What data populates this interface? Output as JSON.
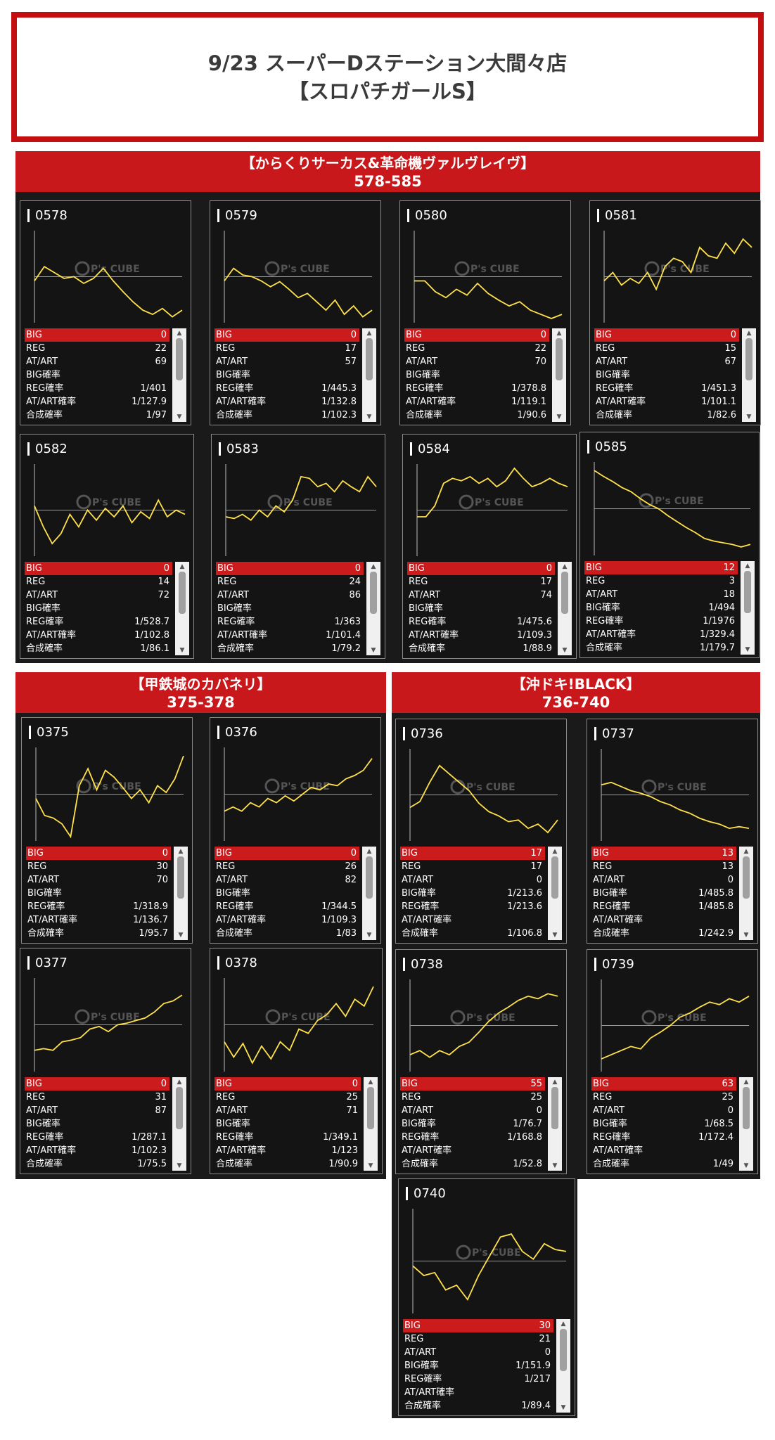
{
  "header": {
    "line1": "9/23 スーパーDステーション大間々店",
    "line2": "【スロパチガールS】"
  },
  "watermark": {
    "brand": "P's CUBE"
  },
  "stat_labels": {
    "big": "BIG",
    "reg": "REG",
    "at": "AT/ART",
    "big_p": "BIG確率",
    "reg_p": "REG確率",
    "at_p": "AT/ART確率",
    "total_p": "合成確率"
  },
  "colors": {
    "accent": "#c8181b",
    "line": "#ffe14a",
    "panel": "#141414"
  },
  "sections": [
    {
      "title": "【からくりサーカス&革命機ヴァルヴレイヴ】",
      "range": "578-585"
    },
    {
      "title": "【甲鉄城のカバネリ】",
      "range": "375-378"
    },
    {
      "title": "【沖ドキ!BLACK】",
      "range": "736-740"
    }
  ],
  "machines": [
    {
      "id": "0578",
      "big": "0",
      "reg": "22",
      "at": "69",
      "big_p": "",
      "reg_p": "1/401",
      "at_p": "1/127.9",
      "total_p": "1/97",
      "trend": [
        0.45,
        0.62,
        0.55,
        0.48,
        0.5,
        0.42,
        0.48,
        0.6,
        0.45,
        0.32,
        0.2,
        0.1,
        0.05,
        0.12,
        0.02,
        0.1
      ]
    },
    {
      "id": "0579",
      "big": "0",
      "reg": "17",
      "at": "57",
      "big_p": "",
      "reg_p": "1/445.3",
      "at_p": "1/132.8",
      "total_p": "1/102.3",
      "trend": [
        0.45,
        0.6,
        0.52,
        0.5,
        0.45,
        0.38,
        0.44,
        0.35,
        0.25,
        0.3,
        0.2,
        0.1,
        0.22,
        0.05,
        0.15,
        0.02,
        0.1
      ]
    },
    {
      "id": "0580",
      "big": "0",
      "reg": "22",
      "at": "70",
      "big_p": "",
      "reg_p": "1/378.8",
      "at_p": "1/119.1",
      "total_p": "1/90.6",
      "trend": [
        0.45,
        0.45,
        0.32,
        0.25,
        0.35,
        0.28,
        0.42,
        0.3,
        0.22,
        0.15,
        0.2,
        0.1,
        0.05,
        0.0,
        0.05
      ]
    },
    {
      "id": "0581",
      "big": "0",
      "reg": "15",
      "at": "67",
      "big_p": "",
      "reg_p": "1/451.3",
      "at_p": "1/101.1",
      "total_p": "1/82.6",
      "trend": [
        0.45,
        0.55,
        0.4,
        0.48,
        0.42,
        0.55,
        0.35,
        0.62,
        0.72,
        0.68,
        0.55,
        0.85,
        0.75,
        0.72,
        0.9,
        0.78,
        0.95,
        0.85
      ]
    },
    {
      "id": "0582",
      "big": "0",
      "reg": "14",
      "at": "72",
      "big_p": "",
      "reg_p": "1/528.7",
      "at_p": "1/102.8",
      "total_p": "1/86.1",
      "trend": [
        0.55,
        0.3,
        0.1,
        0.22,
        0.45,
        0.3,
        0.5,
        0.38,
        0.52,
        0.42,
        0.55,
        0.35,
        0.48,
        0.4,
        0.62,
        0.42,
        0.5,
        0.45
      ]
    },
    {
      "id": "0583",
      "big": "0",
      "reg": "24",
      "at": "86",
      "big_p": "",
      "reg_p": "1/363",
      "at_p": "1/101.4",
      "total_p": "1/79.2",
      "trend": [
        0.42,
        0.4,
        0.45,
        0.38,
        0.5,
        0.42,
        0.55,
        0.48,
        0.62,
        0.9,
        0.88,
        0.78,
        0.82,
        0.72,
        0.85,
        0.78,
        0.72,
        0.9,
        0.78
      ]
    },
    {
      "id": "0584",
      "big": "0",
      "reg": "17",
      "at": "74",
      "big_p": "",
      "reg_p": "1/475.6",
      "at_p": "1/109.3",
      "total_p": "1/88.9",
      "trend": [
        0.42,
        0.42,
        0.55,
        0.82,
        0.88,
        0.85,
        0.9,
        0.82,
        0.88,
        0.78,
        0.85,
        1.0,
        0.88,
        0.78,
        0.82,
        0.88,
        0.82,
        0.78
      ]
    },
    {
      "id": "0585",
      "big": "12",
      "reg": "3",
      "at": "18",
      "big_p": "1/494",
      "reg_p": "1/1976",
      "at_p": "1/329.4",
      "total_p": "1/179.7",
      "trend": [
        0.95,
        0.88,
        0.82,
        0.75,
        0.7,
        0.62,
        0.55,
        0.5,
        0.42,
        0.35,
        0.28,
        0.22,
        0.15,
        0.12,
        0.1,
        0.08,
        0.05,
        0.08
      ]
    },
    {
      "id": "0375",
      "big": "0",
      "reg": "30",
      "at": "70",
      "big_p": "",
      "reg_p": "1/318.9",
      "at_p": "1/136.7",
      "total_p": "1/95.7",
      "trend": [
        0.45,
        0.25,
        0.22,
        0.15,
        0.0,
        0.6,
        0.8,
        0.55,
        0.78,
        0.7,
        0.58,
        0.45,
        0.55,
        0.4,
        0.6,
        0.52,
        0.68,
        0.95
      ]
    },
    {
      "id": "0376",
      "big": "0",
      "reg": "26",
      "at": "82",
      "big_p": "",
      "reg_p": "1/344.5",
      "at_p": "1/109.3",
      "total_p": "1/83",
      "trend": [
        0.3,
        0.35,
        0.3,
        0.4,
        0.35,
        0.45,
        0.4,
        0.48,
        0.42,
        0.5,
        0.58,
        0.55,
        0.62,
        0.6,
        0.68,
        0.72,
        0.78,
        0.92
      ]
    },
    {
      "id": "0736",
      "big": "17",
      "reg": "17",
      "at": "0",
      "big_p": "1/213.6",
      "reg_p": "1/213.6",
      "at_p": "",
      "total_p": "1/106.8",
      "trend": [
        0.35,
        0.42,
        0.65,
        0.85,
        0.75,
        0.65,
        0.55,
        0.4,
        0.3,
        0.25,
        0.18,
        0.2,
        0.1,
        0.15,
        0.05,
        0.2
      ]
    },
    {
      "id": "0737",
      "big": "13",
      "reg": "13",
      "at": "0",
      "big_p": "1/485.8",
      "reg_p": "1/485.8",
      "at_p": "",
      "total_p": "1/242.9",
      "trend": [
        0.62,
        0.65,
        0.6,
        0.55,
        0.52,
        0.48,
        0.42,
        0.38,
        0.32,
        0.28,
        0.22,
        0.18,
        0.15,
        0.1,
        0.12,
        0.1
      ]
    },
    {
      "id": "0377",
      "big": "0",
      "reg": "31",
      "at": "87",
      "big_p": "",
      "reg_p": "1/287.1",
      "at_p": "1/102.3",
      "total_p": "1/75.5",
      "trend": [
        0.2,
        0.22,
        0.2,
        0.3,
        0.32,
        0.35,
        0.45,
        0.48,
        0.42,
        0.5,
        0.52,
        0.55,
        0.58,
        0.65,
        0.75,
        0.78,
        0.85
      ]
    },
    {
      "id": "0378",
      "big": "0",
      "reg": "25",
      "at": "71",
      "big_p": "",
      "reg_p": "1/349.1",
      "at_p": "1/123",
      "total_p": "1/90.9",
      "trend": [
        0.3,
        0.12,
        0.28,
        0.05,
        0.25,
        0.1,
        0.3,
        0.2,
        0.45,
        0.4,
        0.55,
        0.62,
        0.75,
        0.6,
        0.8,
        0.72,
        0.95
      ]
    },
    {
      "id": "0738",
      "big": "55",
      "reg": "25",
      "at": "0",
      "big_p": "1/76.7",
      "reg_p": "1/168.8",
      "at_p": "",
      "total_p": "1/52.8",
      "trend": [
        0.15,
        0.2,
        0.12,
        0.2,
        0.15,
        0.25,
        0.3,
        0.42,
        0.55,
        0.65,
        0.72,
        0.8,
        0.85,
        0.82,
        0.88,
        0.85
      ]
    },
    {
      "id": "0739",
      "big": "63",
      "reg": "25",
      "at": "0",
      "big_p": "1/68.5",
      "reg_p": "1/172.4",
      "at_p": "",
      "total_p": "1/49",
      "trend": [
        0.1,
        0.15,
        0.2,
        0.25,
        0.22,
        0.35,
        0.42,
        0.5,
        0.6,
        0.65,
        0.72,
        0.78,
        0.75,
        0.82,
        0.78,
        0.85
      ]
    },
    {
      "id": "0740",
      "big": "30",
      "reg": "21",
      "at": "0",
      "big_p": "1/151.9",
      "reg_p": "1/217",
      "at_p": "",
      "total_p": "1/89.4",
      "trend": [
        0.45,
        0.35,
        0.38,
        0.2,
        0.25,
        0.1,
        0.35,
        0.55,
        0.75,
        0.78,
        0.6,
        0.52,
        0.68,
        0.62,
        0.6
      ]
    }
  ]
}
